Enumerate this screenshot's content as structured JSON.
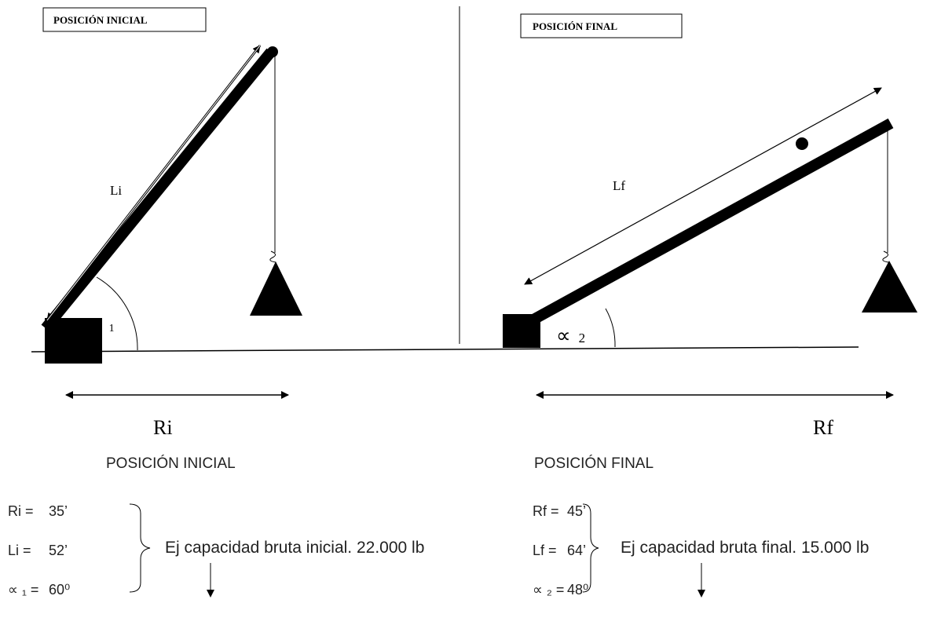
{
  "diagram": {
    "initial": {
      "box_label": "POSICIÓN INICIAL",
      "length_label": "Li",
      "angle_symbol": "∝",
      "angle_subscript": "1",
      "radius_label": "Ri"
    },
    "final": {
      "box_label": "POSICIÓN FINAL",
      "length_label": "Lf",
      "angle_symbol": "∝",
      "angle_subscript": "2",
      "radius_label": "Rf"
    }
  },
  "specs": {
    "initial": {
      "heading": "POSICIÓN INICIAL",
      "rows": [
        [
          "Ri =",
          "35’"
        ],
        [
          "Li =",
          "52’"
        ],
        [
          "∝ ₁ =",
          "60⁰"
        ]
      ],
      "note": "Ej capacidad bruta inicial. 22.000 lb"
    },
    "final": {
      "heading": "POSICIÓN FINAL",
      "rows": [
        [
          "Rf =",
          "45’"
        ],
        [
          "Lf =",
          "64’"
        ],
        [
          "∝ ₂ =",
          "48⁰"
        ]
      ],
      "note": "Ej capacidad bruta final. 15.000 lb"
    }
  }
}
